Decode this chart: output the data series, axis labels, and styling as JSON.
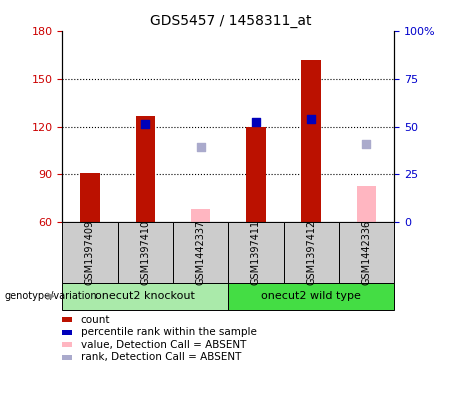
{
  "title": "GDS5457 / 1458311_at",
  "samples": [
    "GSM1397409",
    "GSM1397410",
    "GSM1442337",
    "GSM1397411",
    "GSM1397412",
    "GSM1442336"
  ],
  "group1_label": "onecut2 knockout",
  "group1_samples": [
    0,
    1,
    2
  ],
  "group2_label": "onecut2 wild type",
  "group2_samples": [
    3,
    4,
    5
  ],
  "group1_color": "#AAEAAA",
  "group2_color": "#44DD44",
  "red_bars": [
    91,
    127,
    null,
    120,
    162,
    null
  ],
  "pink_bars": [
    null,
    null,
    68,
    null,
    null,
    83
  ],
  "blue_squares_left_val": [
    null,
    122,
    null,
    123,
    125,
    null
  ],
  "lavender_squares_left_val": [
    null,
    null,
    107,
    null,
    null,
    109
  ],
  "bar_base": 60,
  "left_ylim": [
    60,
    180
  ],
  "right_ylim": [
    0,
    100
  ],
  "left_yticks": [
    60,
    90,
    120,
    150,
    180
  ],
  "right_yticks": [
    0,
    25,
    50,
    75,
    100
  ],
  "right_yticklabels": [
    "0",
    "25",
    "50",
    "75",
    "100%"
  ],
  "left_color": "#CC0000",
  "right_color": "#0000CC",
  "dotted_lines": [
    90,
    120,
    150
  ],
  "bar_width": 0.35,
  "blue_sq_color": "#0000BB",
  "lavender_sq_color": "#AAAACC",
  "red_bar_color": "#BB1100",
  "pink_bar_color": "#FFB6C1",
  "sample_box_color": "#CCCCCC",
  "legend_items": [
    {
      "color": "#BB1100",
      "label": "count"
    },
    {
      "color": "#0000BB",
      "label": "percentile rank within the sample"
    },
    {
      "color": "#FFB6C1",
      "label": "value, Detection Call = ABSENT"
    },
    {
      "color": "#AAAACC",
      "label": "rank, Detection Call = ABSENT"
    }
  ],
  "genotype_label": "genotype/variation",
  "title_fontsize": 10,
  "tick_fontsize": 8,
  "sample_fontsize": 7,
  "group_fontsize": 8,
  "legend_fontsize": 7.5
}
